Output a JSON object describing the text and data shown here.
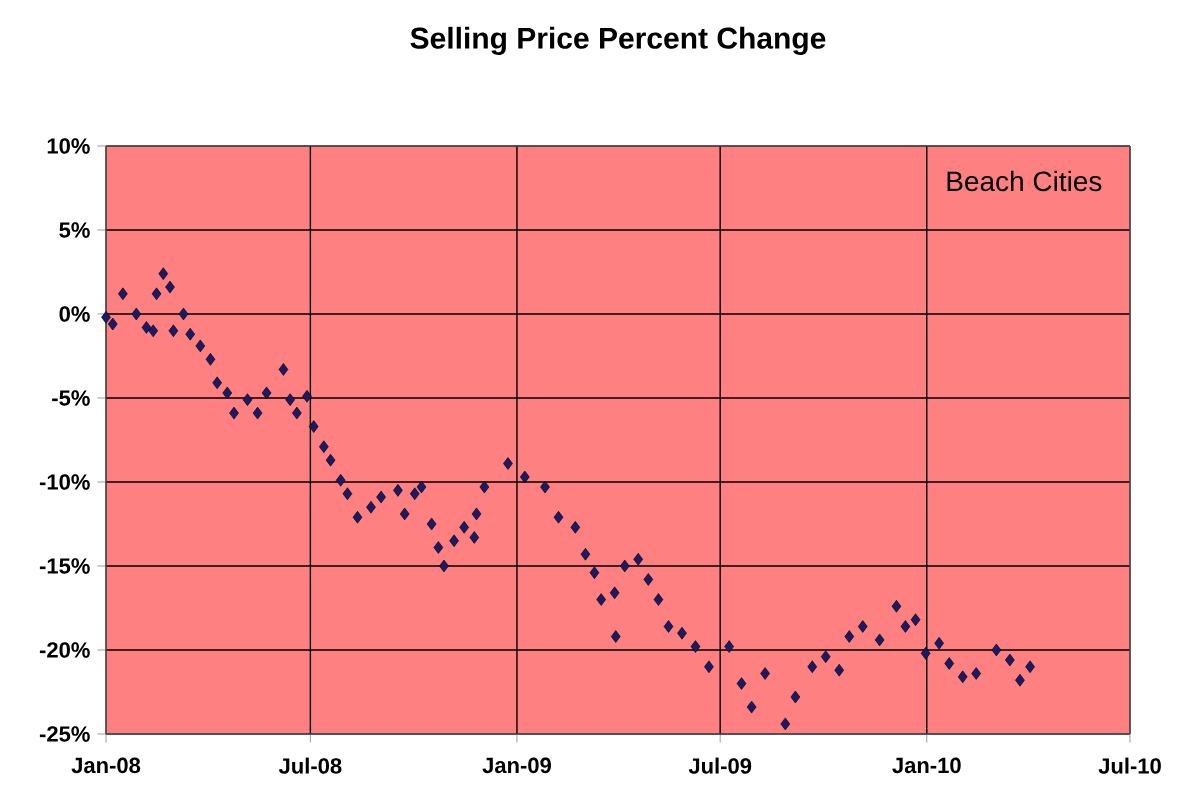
{
  "chart_data": {
    "type": "scatter",
    "title": "Selling Price Percent Change",
    "annotations": [
      "Beach Cities"
    ],
    "x": [
      "2008-01-01",
      "2008-01-07",
      "2008-01-16",
      "2008-01-28",
      "2008-02-06",
      "2008-02-12",
      "2008-02-15",
      "2008-02-21",
      "2008-02-27",
      "2008-03-01",
      "2008-03-10",
      "2008-03-16",
      "2008-03-25",
      "2008-04-03",
      "2008-04-09",
      "2008-04-18",
      "2008-04-24",
      "2008-05-06",
      "2008-05-15",
      "2008-05-23",
      "2008-06-07",
      "2008-06-13",
      "2008-06-19",
      "2008-06-28",
      "2008-07-04",
      "2008-07-13",
      "2008-07-19",
      "2008-07-28",
      "2008-08-03",
      "2008-08-12",
      "2008-08-24",
      "2008-09-02",
      "2008-09-17",
      "2008-09-23",
      "2008-10-02",
      "2008-10-08",
      "2008-10-17",
      "2008-10-23",
      "2008-10-28",
      "2008-11-06",
      "2008-11-15",
      "2008-11-24",
      "2008-11-26",
      "2008-12-03",
      "2008-12-24",
      "2009-01-08",
      "2009-01-26",
      "2009-02-07",
      "2009-02-22",
      "2009-03-03",
      "2009-03-11",
      "2009-03-17",
      "2009-03-29",
      "2009-03-30",
      "2009-04-07",
      "2009-04-19",
      "2009-04-28",
      "2009-05-07",
      "2009-05-16",
      "2009-05-28",
      "2009-06-09",
      "2009-06-21",
      "2009-07-09",
      "2009-07-20",
      "2009-07-29",
      "2009-08-10",
      "2009-08-28",
      "2009-09-06",
      "2009-09-21",
      "2009-10-03",
      "2009-10-15",
      "2009-10-24",
      "2009-11-05",
      "2009-11-20",
      "2009-12-05",
      "2009-12-13",
      "2009-12-22",
      "2009-12-31",
      "2010-01-12",
      "2010-01-21",
      "2010-02-02",
      "2010-02-14",
      "2010-03-04",
      "2010-03-16",
      "2010-03-25",
      "2010-04-03"
    ],
    "series": [
      {
        "color": "#1a1a66",
        "values": [
          -0.2,
          -0.6,
          1.2,
          0.0,
          -0.8,
          -1.0,
          1.2,
          2.4,
          1.6,
          -1.0,
          0.0,
          -1.2,
          -1.9,
          -2.7,
          -4.1,
          -4.7,
          -5.9,
          -5.1,
          -5.9,
          -4.7,
          -3.3,
          -5.1,
          -5.9,
          -4.9,
          -6.7,
          -7.9,
          -8.7,
          -9.9,
          -10.7,
          -12.1,
          -11.5,
          -10.9,
          -10.5,
          -11.9,
          -10.7,
          -10.3,
          -12.5,
          -13.9,
          -15.0,
          -13.5,
          -12.7,
          -13.3,
          -11.9,
          -10.3,
          -8.9,
          -9.7,
          -10.3,
          -12.1,
          -12.7,
          -14.3,
          -15.4,
          -17.0,
          -16.6,
          -19.2,
          -15.0,
          -14.6,
          -15.8,
          -17.0,
          -18.6,
          -19.0,
          -19.8,
          -21.0,
          -19.8,
          -22.0,
          -23.4,
          -21.4,
          -24.4,
          -22.8,
          -21.0,
          -20.4,
          -21.2,
          -19.2,
          -18.6,
          -19.4,
          -17.4,
          -18.6,
          -18.2,
          -20.2,
          -19.6,
          -20.8,
          -21.6,
          -21.4,
          -20.0,
          -20.6,
          -21.8,
          -21.0
        ]
      }
    ],
    "xlim": [
      "2008-01-01",
      "2010-07-01"
    ],
    "xticks": [
      {
        "value": "2008-01-01",
        "label": "Jan-08"
      },
      {
        "value": "2008-07-01",
        "label": "Jul-08"
      },
      {
        "value": "2009-01-01",
        "label": "Jan-09"
      },
      {
        "value": "2009-07-01",
        "label": "Jul-09"
      },
      {
        "value": "2010-01-01",
        "label": "Jan-10"
      },
      {
        "value": "2010-07-01",
        "label": "Jul-10"
      }
    ],
    "ylim": [
      -25,
      10
    ],
    "yticks": [
      {
        "value": -25,
        "label": "-25%"
      },
      {
        "value": -20,
        "label": "-20%"
      },
      {
        "value": -15,
        "label": "-15%"
      },
      {
        "value": -10,
        "label": "-10%"
      },
      {
        "value": -5,
        "label": "-5%"
      },
      {
        "value": 0,
        "label": "0%"
      },
      {
        "value": 5,
        "label": "5%"
      },
      {
        "value": 10,
        "label": "10%"
      }
    ],
    "grid": true,
    "marker": "diamond"
  }
}
